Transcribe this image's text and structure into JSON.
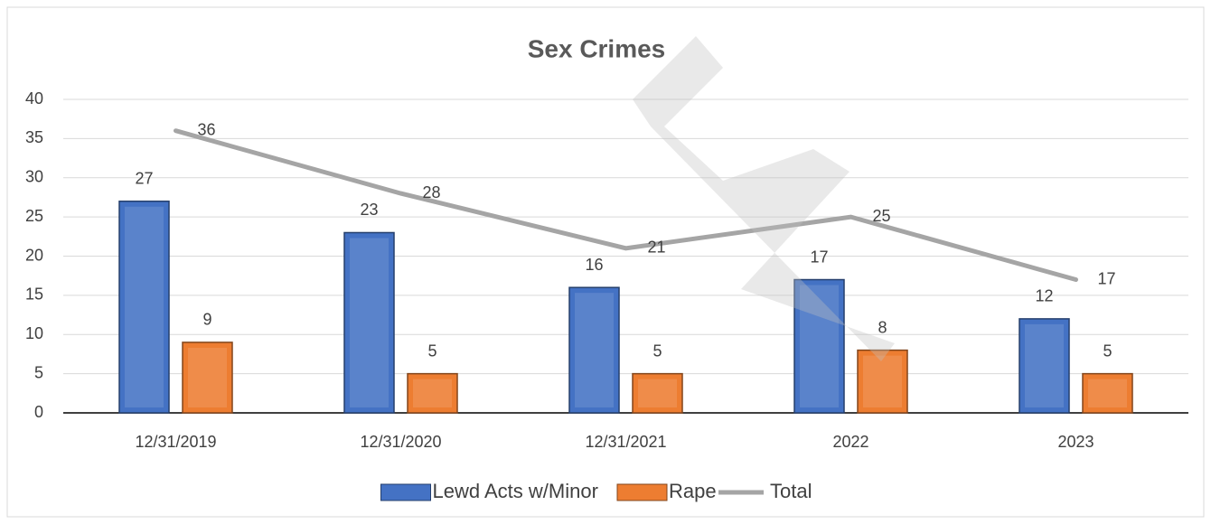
{
  "chart_data": {
    "type": "bar",
    "title": "Sex Crimes",
    "categories": [
      "12/31/2019",
      "12/31/2020",
      "12/31/2021",
      "2022",
      "2023"
    ],
    "series": [
      {
        "name": "Lewd Acts w/Minor",
        "type": "bar",
        "color": "#4472c4",
        "values": [
          27,
          23,
          16,
          17,
          12
        ]
      },
      {
        "name": "Rape",
        "type": "bar",
        "color": "#ed7d31",
        "values": [
          9,
          5,
          5,
          8,
          5
        ]
      },
      {
        "name": "Total",
        "type": "line",
        "color": "#a5a5a5",
        "values": [
          36,
          28,
          21,
          25,
          17
        ]
      }
    ],
    "ylim": [
      0,
      40
    ],
    "yticks": [
      0,
      5,
      10,
      15,
      20,
      25,
      30,
      35,
      40
    ],
    "grid": true,
    "legend": "bottom"
  }
}
